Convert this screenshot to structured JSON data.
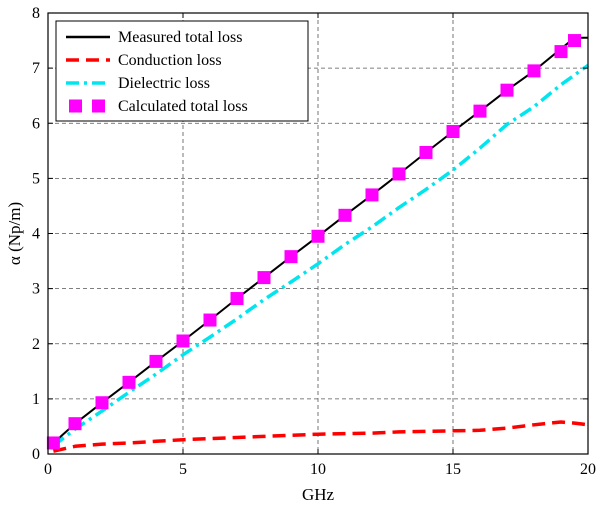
{
  "chart_data": {
    "type": "line",
    "title": "",
    "xlabel": "GHz",
    "ylabel": "α (Np/m)",
    "xlim": [
      0,
      20
    ],
    "ylim": [
      0,
      8
    ],
    "xticks": [
      "0",
      "5",
      "10",
      "15",
      "20"
    ],
    "yticks": [
      "0",
      "1",
      "2",
      "3",
      "4",
      "5",
      "6",
      "7",
      "8"
    ],
    "grid": true,
    "legend_position": "top-left",
    "series": [
      {
        "name": "Measured total loss",
        "color": "#000000",
        "style": "solid",
        "x": [
          0.2,
          1,
          2,
          3,
          4,
          5,
          6,
          7,
          8,
          9,
          10,
          11,
          12,
          13,
          14,
          15,
          16,
          17,
          18,
          19,
          19.5,
          20
        ],
        "y": [
          0.2,
          0.55,
          0.93,
          1.3,
          1.68,
          2.05,
          2.43,
          2.82,
          3.2,
          3.58,
          3.95,
          4.33,
          4.7,
          5.08,
          5.47,
          5.85,
          6.22,
          6.6,
          6.95,
          7.35,
          7.55,
          7.55
        ]
      },
      {
        "name": "Conduction loss",
        "color": "#ff0000",
        "style": "dashed",
        "x": [
          0.2,
          1,
          2,
          3,
          4,
          5,
          6,
          7,
          8,
          9,
          10,
          11,
          12,
          13,
          14,
          15,
          16,
          17,
          18,
          19,
          19.5,
          20
        ],
        "y": [
          0.05,
          0.14,
          0.18,
          0.2,
          0.23,
          0.26,
          0.28,
          0.3,
          0.32,
          0.34,
          0.36,
          0.37,
          0.38,
          0.4,
          0.41,
          0.42,
          0.43,
          0.47,
          0.53,
          0.58,
          0.56,
          0.53
        ]
      },
      {
        "name": "Dielectric loss",
        "color": "#00e5ee",
        "style": "dashdot",
        "x": [
          0.2,
          1,
          2,
          3,
          4,
          5,
          6,
          7,
          8,
          9,
          10,
          11,
          12,
          13,
          14,
          15,
          16,
          17,
          18,
          19,
          20
        ],
        "y": [
          0.15,
          0.45,
          0.78,
          1.12,
          1.45,
          1.8,
          2.12,
          2.45,
          2.8,
          3.12,
          3.45,
          3.8,
          4.12,
          4.47,
          4.8,
          5.15,
          5.55,
          5.98,
          6.3,
          6.7,
          7.05
        ]
      },
      {
        "name": "Calculated total loss",
        "color": "#ff00ff",
        "style": "squares",
        "x": [
          0.2,
          1,
          2,
          3,
          4,
          5,
          6,
          7,
          8,
          9,
          10,
          11,
          12,
          13,
          14,
          15,
          16,
          17,
          18,
          19,
          19.5
        ],
        "y": [
          0.2,
          0.55,
          0.93,
          1.3,
          1.68,
          2.05,
          2.43,
          2.82,
          3.2,
          3.58,
          3.95,
          4.33,
          4.7,
          5.08,
          5.47,
          5.85,
          6.22,
          6.6,
          6.95,
          7.3,
          7.5
        ]
      }
    ]
  }
}
